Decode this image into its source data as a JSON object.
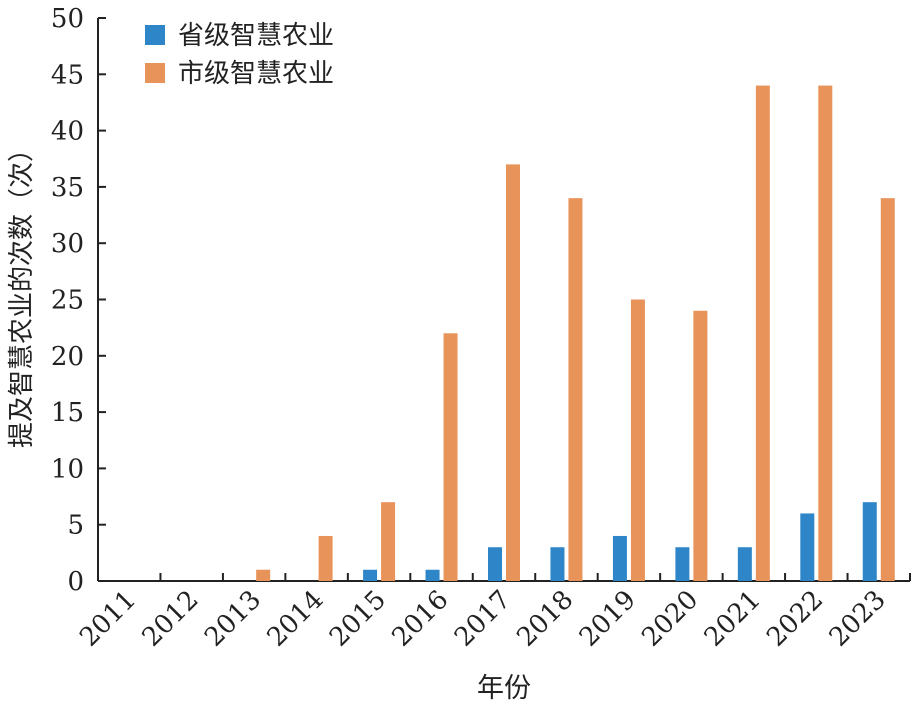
{
  "chart_data": {
    "type": "bar",
    "title": "",
    "xlabel": "年份",
    "ylabel": "提及智慧农业的次数（次）",
    "categories": [
      "2011",
      "2012",
      "2013",
      "2014",
      "2015",
      "2016",
      "2017",
      "2018",
      "2019",
      "2020",
      "2021",
      "2022",
      "2023"
    ],
    "series": [
      {
        "name": "省级智慧农业",
        "color": "#2e86c8",
        "values": [
          0,
          0,
          0,
          0,
          1,
          1,
          3,
          3,
          4,
          3,
          3,
          6,
          7
        ]
      },
      {
        "name": "市级智慧农业",
        "color": "#e8935a",
        "values": [
          0,
          0,
          1,
          4,
          7,
          22,
          37,
          34,
          25,
          24,
          44,
          44,
          34
        ]
      }
    ],
    "ylim": [
      0,
      50
    ],
    "yticks": [
      0,
      5,
      10,
      15,
      20,
      25,
      30,
      35,
      40,
      45,
      50
    ],
    "grid": false,
    "legend_position": "top-left"
  }
}
